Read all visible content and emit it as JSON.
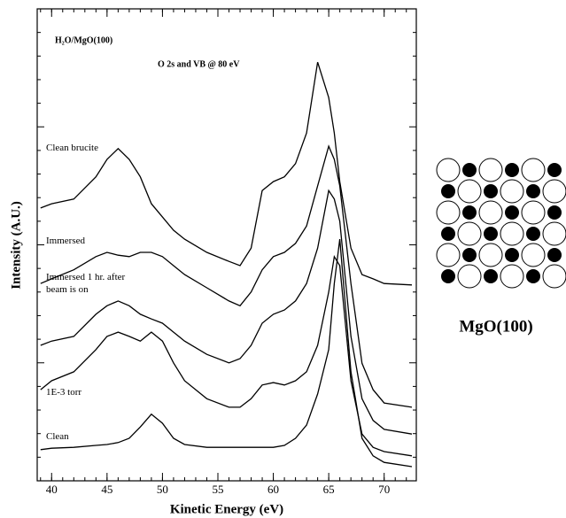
{
  "chart_data": {
    "type": "line",
    "annotations": [
      "H₂O/MgO(100)",
      "O 2s and VB @ 80 eV"
    ],
    "xlabel": "Kinetic Energy (eV)",
    "ylabel": "Intensity (A.U.)",
    "x": [
      39,
      40,
      42,
      44,
      45,
      46,
      47,
      48,
      49,
      50,
      51,
      52,
      54,
      56,
      57,
      58,
      59,
      60,
      61,
      62,
      63,
      64,
      65,
      65.5,
      66,
      67,
      68,
      69,
      70,
      72.5
    ],
    "xlim": [
      38.7,
      72.9
    ],
    "xticks": [
      40,
      45,
      50,
      55,
      60,
      65,
      70
    ],
    "ylim": [
      0,
      100
    ],
    "series": [
      {
        "name": "Clean brucite",
        "color": "#000000",
        "values": [
          57.8,
          58.7,
          59.7,
          64.4,
          68.1,
          70.4,
          68.1,
          64.4,
          58.7,
          55.9,
          53.1,
          51.2,
          48.4,
          46.5,
          45.6,
          49.3,
          61.5,
          63.4,
          64.4,
          67.2,
          73.7,
          88.7,
          81.2,
          73.7,
          63.4,
          49.3,
          43.7,
          42.8,
          41.8,
          41.5
        ]
      },
      {
        "name": "Immersed",
        "color": "#000000",
        "values": [
          41.8,
          42.8,
          44.7,
          47.5,
          48.4,
          47.8,
          47.5,
          48.4,
          48.4,
          47.5,
          45.6,
          43.7,
          40.9,
          38.1,
          37.1,
          40.0,
          44.7,
          47.5,
          48.4,
          50.3,
          54.0,
          62.5,
          70.9,
          68.1,
          62.5,
          41.8,
          24.9,
          19.3,
          16.5,
          15.6
        ]
      },
      {
        "name": "Immersed 1 hr. after beam is on",
        "color": "#000000",
        "values": [
          28.7,
          29.6,
          30.6,
          35.3,
          37.1,
          38.1,
          37.1,
          35.3,
          34.3,
          33.4,
          31.5,
          29.6,
          26.8,
          25.0,
          25.9,
          28.7,
          33.4,
          35.3,
          36.2,
          38.1,
          41.8,
          49.3,
          61.5,
          59.7,
          55.0,
          30.6,
          17.4,
          12.8,
          10.9,
          9.9
        ]
      },
      {
        "name": "1E-3 torr",
        "color": "#000000",
        "values": [
          19.3,
          21.2,
          23.1,
          27.8,
          30.6,
          31.5,
          30.6,
          29.6,
          31.5,
          29.6,
          25.0,
          21.2,
          17.4,
          15.6,
          15.6,
          17.4,
          20.3,
          20.8,
          20.3,
          21.2,
          23.1,
          28.7,
          40.0,
          47.5,
          45.6,
          21.2,
          9.9,
          7.1,
          6.2,
          5.3
        ]
      },
      {
        "name": "Clean",
        "color": "#000000",
        "values": [
          6.6,
          6.9,
          7.1,
          7.5,
          7.7,
          8.1,
          9.0,
          11.4,
          14.1,
          12.2,
          9.0,
          7.7,
          7.1,
          7.1,
          7.1,
          7.1,
          7.1,
          7.1,
          7.5,
          9.0,
          11.8,
          18.4,
          27.8,
          41.8,
          51.2,
          23.1,
          9.0,
          5.3,
          3.9,
          3.0
        ]
      }
    ]
  },
  "diagram": {
    "label": "MgO(100)"
  }
}
